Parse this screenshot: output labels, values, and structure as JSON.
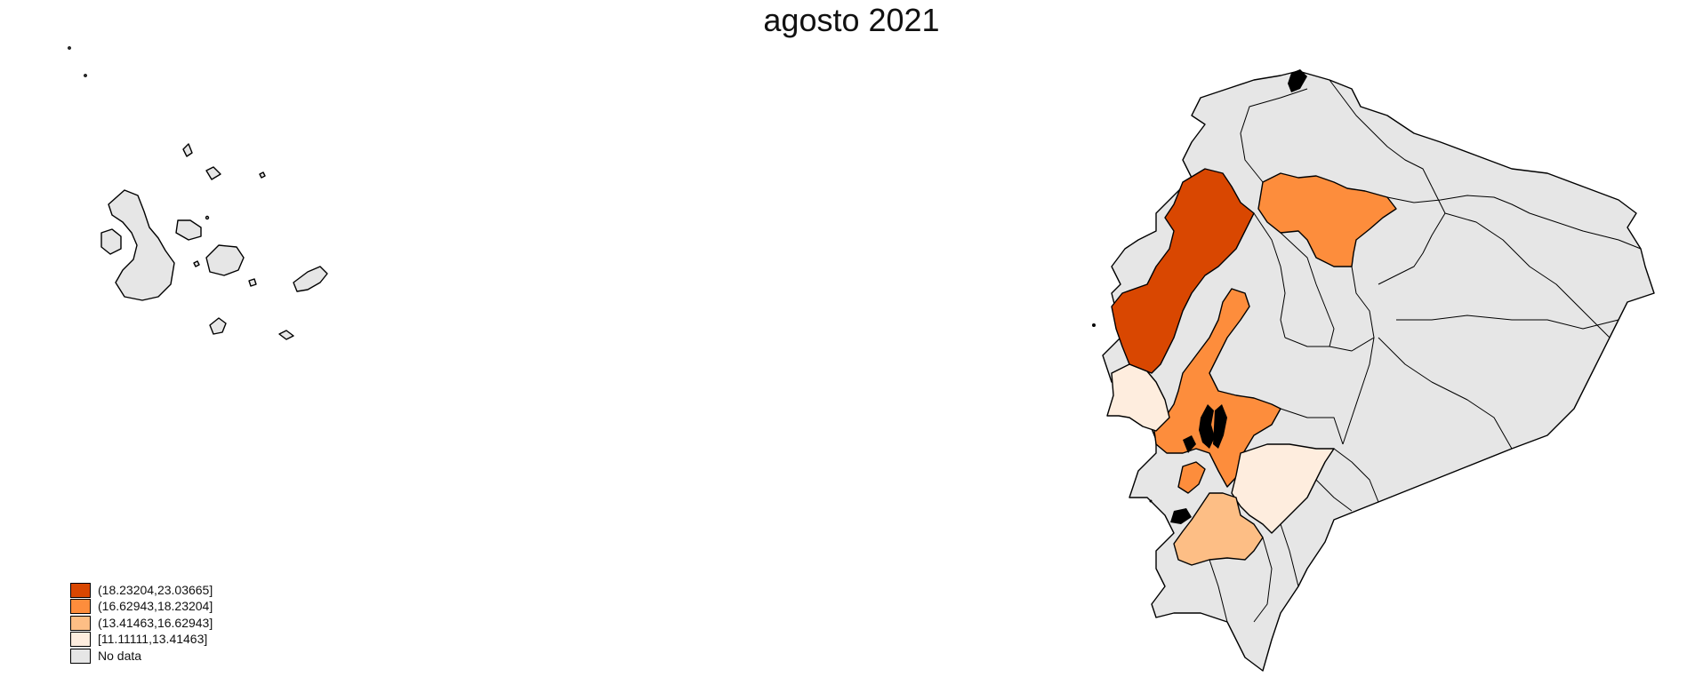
{
  "map": {
    "title": "agosto 2021",
    "type": "choropleth",
    "region": "Ecuador provinces",
    "colors": {
      "class_1": "#d94701",
      "class_2": "#fd8d3c",
      "class_3": "#fdbe85",
      "class_4": "#feedde",
      "no_data": "#e6e6e6",
      "border": "#000000"
    }
  },
  "legend": {
    "items": [
      {
        "label": "(18.23204,23.03665]",
        "color": "#d94701"
      },
      {
        "label": "(16.62943,18.23204]",
        "color": "#fd8d3c"
      },
      {
        "label": "(13.41463,16.62943]",
        "color": "#fdbe85"
      },
      {
        "label": "[11.11111,13.41463]",
        "color": "#feedde"
      },
      {
        "label": "No data",
        "color": "#e6e6e6"
      }
    ]
  }
}
